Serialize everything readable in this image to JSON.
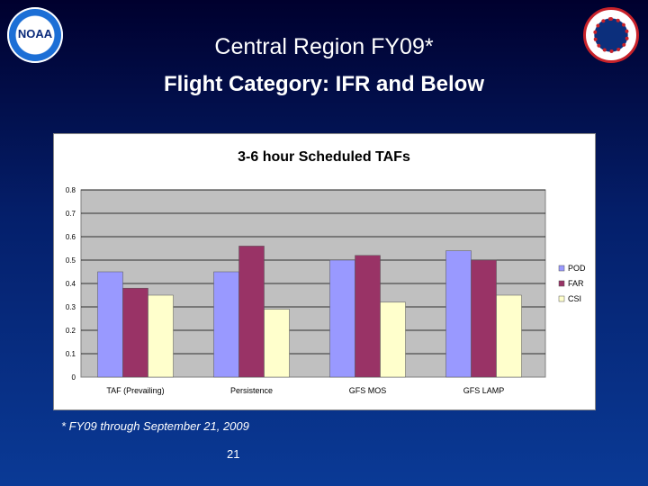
{
  "slide": {
    "title": "Central Region FY09*",
    "subtitle": "Flight Category: IFR and Below",
    "footnote": "* FY09 through September 21, 2009",
    "page_number": "21",
    "logo_left_text": "NOAA"
  },
  "colors": {
    "POD": "#9999ff",
    "FAR": "#993366",
    "CSI": "#ffffcc",
    "plot_bg": "#c0c0c0"
  },
  "chart_data": {
    "type": "bar",
    "title": "3-6 hour Scheduled TAFs",
    "categories": [
      "TAF (Prevailing)",
      "Persistence",
      "GFS MOS",
      "GFS LAMP"
    ],
    "series": [
      {
        "name": "POD",
        "values": [
          0.45,
          0.45,
          0.5,
          0.54
        ]
      },
      {
        "name": "FAR",
        "values": [
          0.38,
          0.56,
          0.52,
          0.5
        ]
      },
      {
        "name": "CSI",
        "values": [
          0.35,
          0.29,
          0.32,
          0.35
        ]
      }
    ],
    "yticks": [
      "0",
      "0.1",
      "0.2",
      "0.3",
      "0.4",
      "0.5",
      "0.6",
      "0.7",
      "0.8"
    ],
    "ylim": [
      0,
      0.8
    ],
    "xlabel": "",
    "ylabel": "",
    "legend_position": "right"
  }
}
